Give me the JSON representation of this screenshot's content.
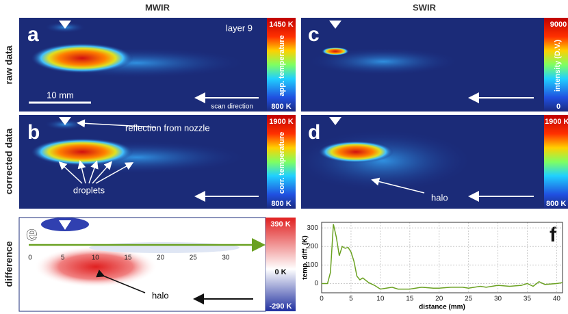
{
  "column_titles": [
    "MWIR",
    "SWIR"
  ],
  "row_labels": [
    "raw data",
    "corrected data",
    "difference"
  ],
  "panel_a": {
    "letter": "a",
    "layer": "layer 9",
    "scale_bar": "10 mm",
    "scan_direction": "scan direction",
    "colorbar_max": "1450 K",
    "colorbar_min": "800 K",
    "colorbar_label": "app. temperature"
  },
  "panel_b": {
    "letter": "b",
    "reflection": "reflection from nozzle",
    "droplets": "droplets",
    "colorbar_max": "1900 K",
    "colorbar_min": "800 K",
    "colorbar_label": "corr. temperature"
  },
  "panel_c": {
    "letter": "c",
    "colorbar_max": "9000",
    "colorbar_min": "0",
    "colorbar_label": "intensity (D.V.)"
  },
  "panel_d": {
    "letter": "d",
    "halo": "halo",
    "colorbar_max": "1900 K",
    "colorbar_min": "800 K"
  },
  "panel_e": {
    "letter": "e",
    "halo": "halo",
    "colorbar_max": "390 K",
    "colorbar_mid": "0 K",
    "colorbar_min": "-290 K",
    "axis_ticks": [
      0,
      5,
      10,
      15,
      20,
      25,
      30
    ]
  },
  "chart_data": {
    "type": "line",
    "letter": "f",
    "x_label": "distance (mm)",
    "y_label": "temp. diff. (K)",
    "x": [
      0,
      1,
      1.5,
      2,
      2.5,
      3,
      3.5,
      4,
      4.5,
      5,
      5.5,
      6,
      6.5,
      7,
      8,
      9,
      10,
      11,
      12,
      13,
      15,
      17,
      19,
      20,
      22,
      24,
      25,
      27,
      28,
      30,
      32,
      34,
      35,
      36,
      37,
      38,
      40,
      41
    ],
    "series": [
      {
        "color": "#6aa121",
        "values": [
          0,
          0,
          60,
          320,
          250,
          150,
          200,
          190,
          195,
          170,
          120,
          40,
          20,
          30,
          5,
          -10,
          -30,
          -25,
          -20,
          -30,
          -30,
          -20,
          -25,
          -25,
          -20,
          -20,
          -25,
          -15,
          -20,
          -10,
          -15,
          -10,
          0,
          -15,
          10,
          -5,
          0,
          5
        ]
      }
    ],
    "xlim": [
      0,
      41
    ],
    "ylim": [
      -50,
      330
    ],
    "xticks": [
      0,
      5,
      10,
      15,
      20,
      25,
      30,
      35,
      40
    ],
    "yticks": [
      0,
      100,
      200,
      300
    ],
    "grid": true
  }
}
